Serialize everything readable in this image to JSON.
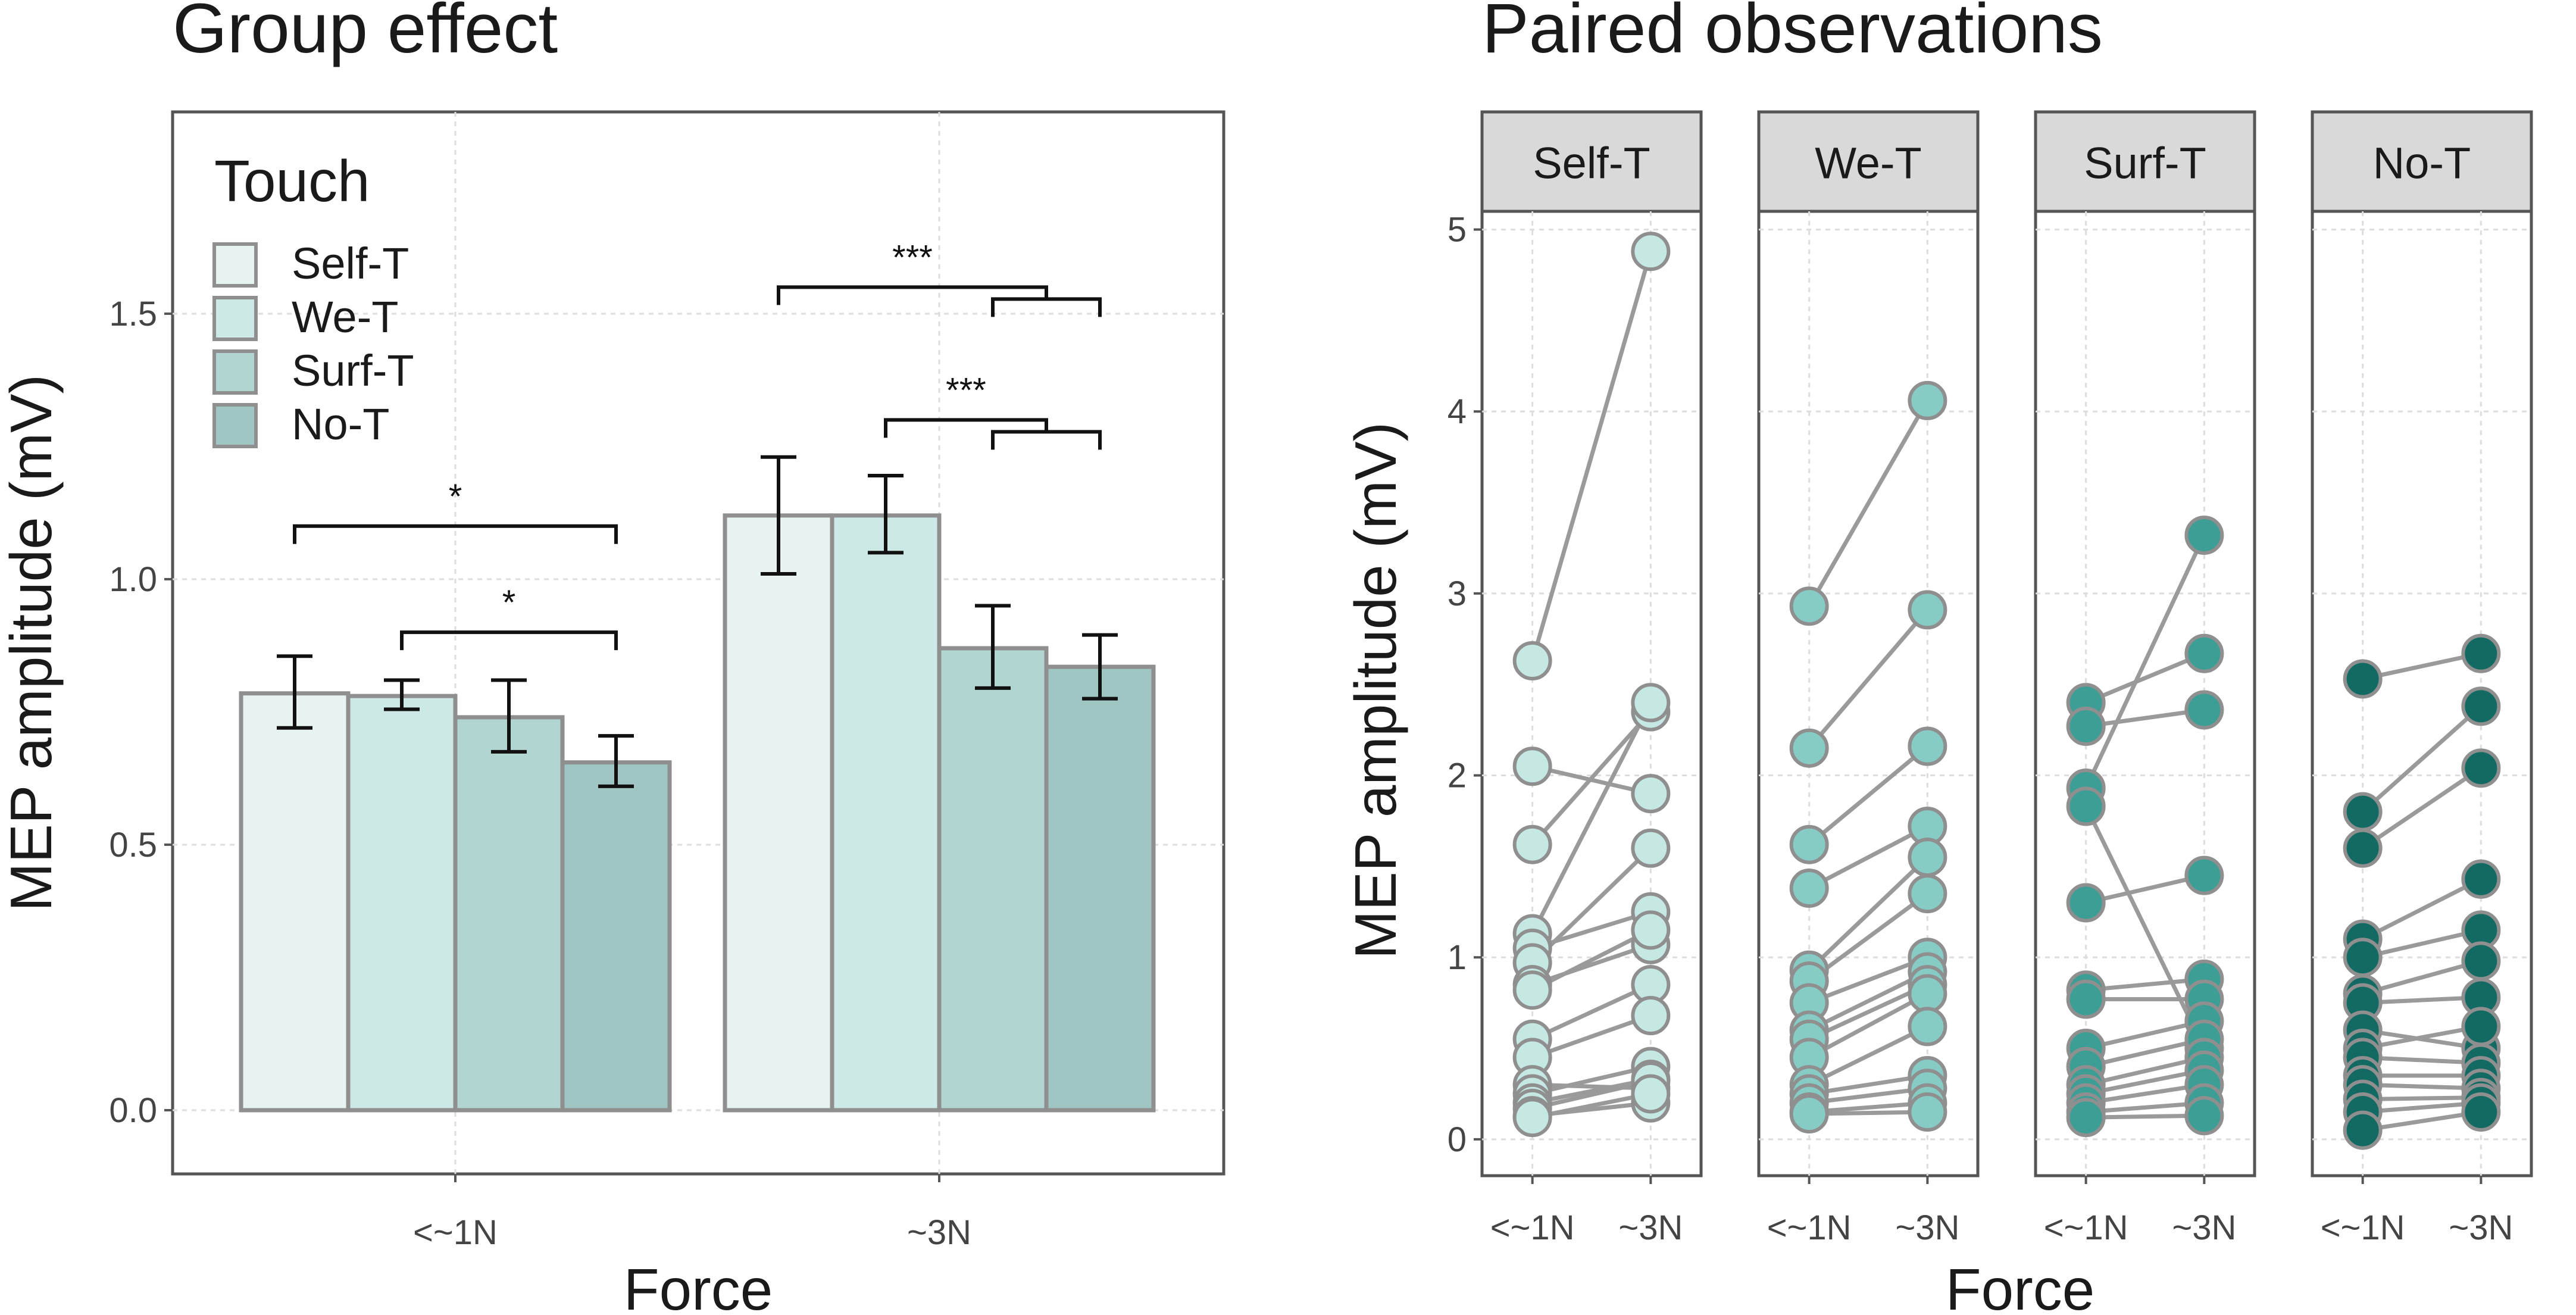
{
  "chart_data": [
    {
      "type": "bar",
      "title": "Group effect",
      "xlabel": "Force",
      "ylabel": "MEP amplitude (mV)",
      "ylim": [
        -0.12,
        1.88
      ],
      "yticks": [
        0.0,
        0.5,
        1.0,
        1.5
      ],
      "yticklabels": [
        "0.0",
        "0.5",
        "1.0",
        "1.5"
      ],
      "grid": true,
      "legend": {
        "title": "Touch",
        "placement": "top-left",
        "entries": [
          "Self-T",
          "We-T",
          "Surf-T",
          "No-T"
        ]
      },
      "categories": [
        "<~1N",
        "~3N"
      ],
      "series": [
        {
          "name": "Self-T",
          "color": "#e6f3f1",
          "values": [
            0.785,
            1.12
          ],
          "err_low": [
            0.72,
            1.01
          ],
          "err_high": [
            0.855,
            1.23
          ]
        },
        {
          "name": "We-T",
          "color": "#cde9e6",
          "values": [
            0.78,
            1.12
          ],
          "err_low": [
            0.755,
            1.05
          ],
          "err_high": [
            0.81,
            1.195
          ]
        },
        {
          "name": "Surf-T",
          "color": "#b1d6d2",
          "values": [
            0.74,
            0.87
          ],
          "err_low": [
            0.675,
            0.795
          ],
          "err_high": [
            0.81,
            0.95
          ]
        },
        {
          "name": "No-T",
          "color": "#9fc6c2",
          "values": [
            0.655,
            0.835
          ],
          "err_low": [
            0.61,
            0.775
          ],
          "err_high": [
            0.705,
            0.895
          ]
        }
      ],
      "significance": [
        {
          "label": "*",
          "category": 0,
          "from": "Self-T",
          "to": "No-T",
          "y": 1.1
        },
        {
          "label": "*",
          "category": 0,
          "from": "We-T",
          "to": "No-T",
          "y": 0.9
        },
        {
          "label": "***",
          "category": 1,
          "from": "Self-T",
          "to_pair": [
            "Surf-T",
            "No-T"
          ],
          "y": 1.55,
          "y_inner": 1.52
        },
        {
          "label": "***",
          "category": 1,
          "from": "We-T",
          "to_pair": [
            "Surf-T",
            "No-T"
          ],
          "y": 1.3,
          "y_inner": 1.27
        }
      ]
    },
    {
      "type": "scatter",
      "subtype": "paired-lines",
      "title": "Paired observations",
      "xlabel": "Force",
      "ylabel": "MEP amplitude (mV)",
      "ylim": [
        -0.2,
        5.1
      ],
      "yticks": [
        0,
        1,
        2,
        3,
        4,
        5
      ],
      "yticklabels": [
        "0",
        "1",
        "2",
        "3",
        "4",
        "5"
      ],
      "xticklabels": [
        "<~1N",
        "~3N"
      ],
      "grid": true,
      "panels": [
        {
          "name": "Self-T",
          "color": "#c6e8e3",
          "pairs": [
            [
              2.63,
              4.88
            ],
            [
              2.05,
              1.9
            ],
            [
              1.62,
              2.35
            ],
            [
              1.13,
              2.4
            ],
            [
              1.05,
              1.25
            ],
            [
              0.97,
              1.6
            ],
            [
              0.85,
              1.07
            ],
            [
              0.82,
              1.15
            ],
            [
              0.55,
              0.85
            ],
            [
              0.45,
              0.68
            ],
            [
              0.3,
              0.28
            ],
            [
              0.25,
              0.4
            ],
            [
              0.2,
              0.33
            ],
            [
              0.17,
              0.32
            ],
            [
              0.13,
              0.2
            ],
            [
              0.12,
              0.25
            ]
          ]
        },
        {
          "name": "We-T",
          "color": "#86cbc4",
          "pairs": [
            [
              2.93,
              4.06
            ],
            [
              2.15,
              2.91
            ],
            [
              1.62,
              2.16
            ],
            [
              1.38,
              1.72
            ],
            [
              0.93,
              1.55
            ],
            [
              0.87,
              1.35
            ],
            [
              0.75,
              1.0
            ],
            [
              0.6,
              0.92
            ],
            [
              0.55,
              0.85
            ],
            [
              0.45,
              0.8
            ],
            [
              0.3,
              0.62
            ],
            [
              0.25,
              0.35
            ],
            [
              0.2,
              0.28
            ],
            [
              0.15,
              0.2
            ],
            [
              0.14,
              0.15
            ]
          ]
        },
        {
          "name": "Surf-T",
          "color": "#3d9e96",
          "pairs": [
            [
              2.4,
              2.67
            ],
            [
              2.27,
              2.36
            ],
            [
              1.93,
              3.32
            ],
            [
              1.83,
              0.5
            ],
            [
              1.3,
              1.45
            ],
            [
              0.82,
              0.88
            ],
            [
              0.77,
              0.77
            ],
            [
              0.5,
              0.65
            ],
            [
              0.4,
              0.55
            ],
            [
              0.3,
              0.45
            ],
            [
              0.25,
              0.38
            ],
            [
              0.2,
              0.3
            ],
            [
              0.15,
              0.2
            ],
            [
              0.12,
              0.13
            ]
          ]
        },
        {
          "name": "No-T",
          "color": "#126a63",
          "pairs": [
            [
              2.53,
              2.67
            ],
            [
              1.8,
              2.38
            ],
            [
              1.6,
              2.04
            ],
            [
              1.1,
              1.43
            ],
            [
              1.0,
              1.15
            ],
            [
              0.8,
              0.98
            ],
            [
              0.75,
              0.78
            ],
            [
              0.6,
              0.5
            ],
            [
              0.5,
              0.62
            ],
            [
              0.45,
              0.42
            ],
            [
              0.35,
              0.35
            ],
            [
              0.3,
              0.28
            ],
            [
              0.22,
              0.23
            ],
            [
              0.15,
              0.2
            ],
            [
              0.05,
              0.15
            ]
          ]
        }
      ]
    }
  ]
}
